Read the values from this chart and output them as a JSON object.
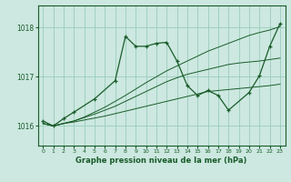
{
  "title": "Graphe pression niveau de la mer (hPa)",
  "bg_color": "#cce8e0",
  "grid_color": "#99ccbb",
  "line_color": "#1a5c2a",
  "xlim": [
    -0.5,
    23.5
  ],
  "ylim": [
    1015.6,
    1018.45
  ],
  "yticks": [
    1016,
    1017,
    1018
  ],
  "xticks": [
    0,
    1,
    2,
    3,
    4,
    5,
    6,
    7,
    8,
    9,
    10,
    11,
    12,
    13,
    14,
    15,
    16,
    17,
    18,
    19,
    20,
    21,
    22,
    23
  ],
  "series": [
    {
      "x": [
        0,
        1,
        2,
        3,
        4,
        5,
        6,
        7,
        8,
        9,
        10,
        11,
        12,
        13,
        14,
        15,
        16,
        17,
        18,
        19,
        20,
        21,
        22,
        23
      ],
      "y": [
        1016.05,
        1016.0,
        1016.05,
        1016.08,
        1016.12,
        1016.16,
        1016.2,
        1016.25,
        1016.3,
        1016.35,
        1016.4,
        1016.45,
        1016.5,
        1016.55,
        1016.6,
        1016.65,
        1016.7,
        1016.72,
        1016.74,
        1016.76,
        1016.78,
        1016.8,
        1016.82,
        1016.85
      ],
      "has_marker": false
    },
    {
      "x": [
        0,
        1,
        2,
        3,
        4,
        5,
        6,
        7,
        8,
        9,
        10,
        11,
        12,
        13,
        14,
        15,
        16,
        17,
        18,
        19,
        20,
        21,
        22,
        23
      ],
      "y": [
        1016.05,
        1016.0,
        1016.05,
        1016.1,
        1016.17,
        1016.24,
        1016.32,
        1016.4,
        1016.5,
        1016.6,
        1016.7,
        1016.8,
        1016.9,
        1016.98,
        1017.05,
        1017.1,
        1017.15,
        1017.2,
        1017.25,
        1017.28,
        1017.3,
        1017.32,
        1017.35,
        1017.38
      ],
      "has_marker": false
    },
    {
      "x": [
        0,
        1,
        2,
        3,
        4,
        5,
        6,
        7,
        8,
        9,
        10,
        11,
        12,
        13,
        14,
        15,
        16,
        17,
        18,
        19,
        20,
        21,
        22,
        23
      ],
      "y": [
        1016.05,
        1016.0,
        1016.05,
        1016.1,
        1016.18,
        1016.28,
        1016.38,
        1016.5,
        1016.62,
        1016.75,
        1016.88,
        1017.0,
        1017.12,
        1017.22,
        1017.32,
        1017.42,
        1017.52,
        1017.6,
        1017.68,
        1017.76,
        1017.84,
        1017.9,
        1017.95,
        1018.02
      ],
      "has_marker": false
    },
    {
      "x": [
        0,
        1,
        2,
        3,
        5,
        7,
        8,
        9,
        10,
        11,
        12,
        13,
        14,
        15,
        16,
        17,
        18,
        20,
        21,
        22,
        23
      ],
      "y": [
        1016.1,
        1016.0,
        1016.15,
        1016.28,
        1016.55,
        1016.92,
        1017.82,
        1017.62,
        1017.62,
        1017.68,
        1017.7,
        1017.32,
        1016.82,
        1016.62,
        1016.72,
        1016.62,
        1016.32,
        1016.68,
        1017.02,
        1017.62,
        1018.08
      ],
      "has_marker": true
    }
  ]
}
